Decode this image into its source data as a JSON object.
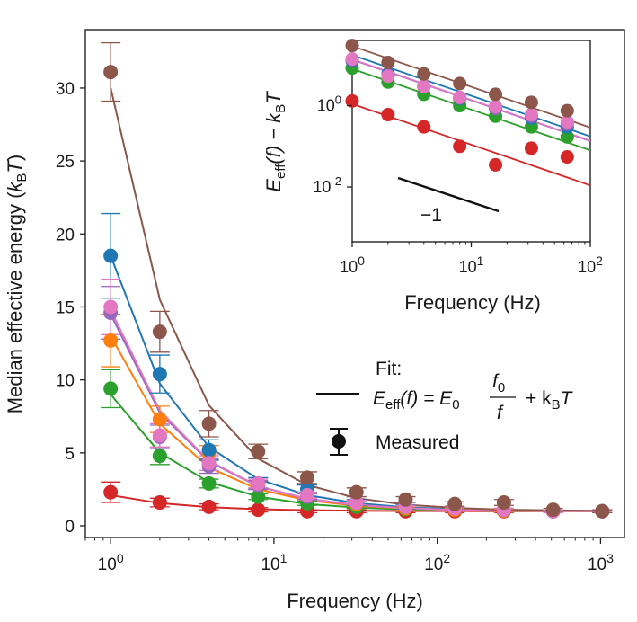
{
  "chart_data": [
    {
      "type": "scatter",
      "xlabel": "Frequency (Hz)",
      "ylabel": "Median effective energy (k_BT)",
      "ylabel_parts": {
        "main": "Median effective energy (",
        "k": "k",
        "sub": "B",
        "T": "T",
        "close": ")"
      },
      "xscale": "log",
      "xlim": [
        0.7,
        1400
      ],
      "ylim": [
        -0.8,
        34
      ],
      "x_ticks": [
        {
          "base": "10",
          "exp": "0",
          "value": 1
        },
        {
          "base": "10",
          "exp": "1",
          "value": 10
        },
        {
          "base": "10",
          "exp": "2",
          "value": 100
        },
        {
          "base": "10",
          "exp": "3",
          "value": 1000
        }
      ],
      "y_ticks": [
        {
          "label": "0",
          "value": 0
        },
        {
          "label": "5",
          "value": 5
        },
        {
          "label": "10",
          "value": 10
        },
        {
          "label": "15",
          "value": 15
        },
        {
          "label": "20",
          "value": 20
        },
        {
          "label": "25",
          "value": 25
        },
        {
          "label": "30",
          "value": 30
        }
      ],
      "x": [
        1,
        2,
        4,
        8,
        16,
        32,
        64,
        128,
        256,
        512,
        1024
      ],
      "series": [
        {
          "color": "#d62728",
          "values": [
            2.3,
            1.6,
            1.3,
            1.1,
            1.0,
            1.0,
            1.0,
            1.0,
            1.0,
            1.0,
            1.0
          ],
          "errors": [
            0.7,
            0.3,
            0.2,
            0.15,
            0.1,
            0.1,
            0.1,
            0.1,
            0.1,
            0.1,
            0.1
          ],
          "fit": [
            2.1,
            1.55,
            1.28,
            1.14,
            1.07,
            1.035,
            1.02,
            1.01,
            1.005,
            1.0,
            1.0
          ]
        },
        {
          "color": "#2ca02c",
          "values": [
            9.4,
            4.8,
            2.9,
            2.0,
            1.55,
            1.3,
            1.15,
            1.1,
            1.05,
            1.0,
            1.0
          ],
          "errors": [
            1.3,
            0.6,
            0.3,
            0.2,
            0.15,
            0.1,
            0.1,
            0.1,
            0.1,
            0.1,
            0.1
          ],
          "fit": [
            9.0,
            5.0,
            3.0,
            2.0,
            1.5,
            1.25,
            1.12,
            1.06,
            1.03,
            1.02,
            1.01
          ]
        },
        {
          "color": "#ff7f0e",
          "values": [
            12.7,
            7.3,
            5.0,
            2.8,
            2.0,
            1.5,
            1.2,
            1.1,
            1.05,
            1.0,
            1.0
          ],
          "errors": [
            1.8,
            0.9,
            0.5,
            0.3,
            0.2,
            0.15,
            0.1,
            0.1,
            0.1,
            0.1,
            0.1
          ],
          "fit": [
            13.0,
            7.0,
            4.0,
            2.5,
            1.75,
            1.37,
            1.19,
            1.09,
            1.05,
            1.02,
            1.01
          ]
        },
        {
          "color": "#1f77b4",
          "values": [
            18.5,
            10.4,
            5.2,
            2.9,
            2.5,
            1.6,
            1.3,
            1.2,
            1.1,
            1.0,
            1.0
          ],
          "errors": [
            2.9,
            1.3,
            0.7,
            0.4,
            0.3,
            0.2,
            0.15,
            0.1,
            0.1,
            0.1,
            0.1
          ],
          "fit": [
            18.5,
            9.75,
            5.4,
            3.2,
            2.1,
            1.55,
            1.27,
            1.14,
            1.07,
            1.03,
            1.02
          ]
        },
        {
          "color": "#9467bd",
          "values": [
            14.6,
            6.1,
            4.1,
            2.8,
            2.0,
            1.6,
            1.3,
            1.2,
            1.1,
            1.0,
            1.0
          ],
          "errors": [
            1.8,
            0.8,
            0.5,
            0.3,
            0.2,
            0.15,
            0.1,
            0.1,
            0.1,
            0.1,
            0.1
          ],
          "fit": [
            14.5,
            7.75,
            4.4,
            2.7,
            1.85,
            1.42,
            1.21,
            1.1,
            1.05,
            1.03,
            1.01
          ]
        },
        {
          "color": "#e377c2",
          "values": [
            15.0,
            6.2,
            4.3,
            2.9,
            2.1,
            1.6,
            1.3,
            1.2,
            1.1,
            1.0,
            1.0
          ],
          "errors": [
            1.9,
            0.8,
            0.5,
            0.3,
            0.2,
            0.15,
            0.1,
            0.1,
            0.1,
            0.1,
            0.1
          ],
          "fit": [
            14.8,
            7.9,
            4.45,
            2.72,
            1.86,
            1.43,
            1.21,
            1.1,
            1.05,
            1.03,
            1.01
          ]
        },
        {
          "color": "#8c564b",
          "values": [
            31.1,
            13.3,
            7.0,
            5.1,
            3.3,
            2.3,
            1.8,
            1.5,
            1.6,
            1.1,
            1.0
          ],
          "errors": [
            2.0,
            1.4,
            0.9,
            0.5,
            0.4,
            0.3,
            0.2,
            0.15,
            0.2,
            0.1,
            0.1
          ],
          "fit": [
            30.0,
            15.5,
            8.25,
            4.6,
            2.8,
            1.9,
            1.45,
            1.23,
            1.11,
            1.06,
            1.03
          ]
        }
      ],
      "legend": {
        "fit_title": "Fit:",
        "fit_lhs_E": "E",
        "fit_lhs_sub": "eff",
        "fit_lhs_rest": "(f) = E",
        "fit_lhs_sub0": "0",
        "fit_num": "f",
        "fit_num_sub": "0",
        "fit_den": "f",
        "fit_plus": "+ k",
        "fit_plus_sub": "B",
        "fit_plus_T": "T",
        "measured_label": "Measured"
      }
    },
    {
      "type": "scatter",
      "xlabel": "Frequency (Hz)",
      "ylabel_parts": {
        "E": "E",
        "sub": "eff",
        "mid": "(f) − k",
        "sub2": "B",
        "T": "T"
      },
      "xscale": "log",
      "yscale": "log",
      "xlim": [
        1,
        100
      ],
      "ylim": [
        0.00045,
        40
      ],
      "x_ticks": [
        {
          "base": "10",
          "exp": "0",
          "value": 1
        },
        {
          "base": "10",
          "exp": "1",
          "value": 10
        },
        {
          "base": "10",
          "exp": "2",
          "value": 100
        }
      ],
      "y_ticks": [
        {
          "base": "10",
          "exp": "0",
          "value": 1
        },
        {
          "base": "10",
          "exp": "-2",
          "value": 0.01
        }
      ],
      "slope_label": "−1",
      "x": [
        1,
        2,
        4,
        8,
        16,
        32,
        64
      ],
      "series": [
        {
          "color": "#d62728",
          "values": [
            1.3,
            0.6,
            0.3,
            0.1,
            0.035,
            0.09,
            0.055
          ],
          "fit_at_1": 1.1
        },
        {
          "color": "#2ca02c",
          "values": [
            8.4,
            3.8,
            1.9,
            1.0,
            0.55,
            0.3,
            0.17
          ],
          "fit_at_1": 8.0
        },
        {
          "color": "#1f77b4",
          "values": [
            12.5,
            6.0,
            3.0,
            1.5,
            0.85,
            0.5,
            0.3
          ],
          "fit_at_1": 17.5
        },
        {
          "color": "#9467bd",
          "values": [
            13.6,
            5.5,
            2.9,
            1.55,
            0.85,
            0.55,
            0.35
          ],
          "fit_at_1": 13.5
        },
        {
          "color": "#e377c2",
          "values": [
            14.0,
            5.3,
            3.0,
            1.6,
            0.95,
            0.6,
            0.4
          ],
          "fit_at_1": 13.8
        },
        {
          "color": "#8c564b",
          "values": [
            30.0,
            11.5,
            6.0,
            3.5,
            1.9,
            1.2,
            0.75
          ],
          "fit_at_1": 29.0
        }
      ]
    }
  ]
}
